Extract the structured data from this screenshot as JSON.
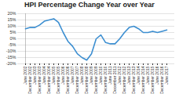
{
  "chart_data": {
    "type": "line",
    "title": "HPI Percentage Change Year over Year",
    "categories": [
      "June 2002",
      "December 2002",
      "June 2003",
      "December 2003",
      "June 2004",
      "December 2004",
      "June 2005",
      "December 2005",
      "June 2006",
      "December 2006",
      "June 2007",
      "December 2007",
      "June 2008",
      "December 2008",
      "June 2009",
      "December 2009",
      "June 2010",
      "December 2010",
      "June 2011",
      "December 2011",
      "June 2012",
      "December 2012",
      "June 2013",
      "December 2013",
      "June 2014",
      "December 2014",
      "June 2015",
      "December 2015",
      "June 2016",
      "December 2016",
      "June 2017"
    ],
    "values": [
      8,
      9,
      9,
      11,
      14,
      15,
      16,
      13,
      5,
      -2,
      -6,
      -12,
      -15,
      -17,
      -12,
      0,
      3,
      -3,
      -4,
      -4,
      0,
      5,
      9,
      10,
      8,
      5,
      5,
      6,
      5,
      6,
      7
    ],
    "color": "#3d8fd1",
    "ylim": [
      -20,
      20
    ],
    "yticks": [
      {
        "value": -20,
        "label": "-20%"
      },
      {
        "value": -15,
        "label": "-15%"
      },
      {
        "value": -10,
        "label": "-10%"
      },
      {
        "value": -5,
        "label": "-5%"
      },
      {
        "value": 0,
        "label": "0%"
      },
      {
        "value": 5,
        "label": "5%"
      },
      {
        "value": 10,
        "label": "10%"
      },
      {
        "value": 15,
        "label": "15%"
      },
      {
        "value": 20,
        "label": "20%"
      }
    ],
    "grid": true
  }
}
